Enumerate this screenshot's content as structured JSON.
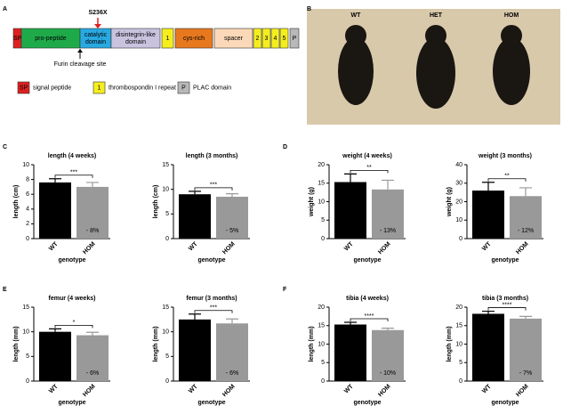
{
  "panel_labels": [
    "A",
    "B",
    "C",
    "D",
    "E",
    "F"
  ],
  "diagram": {
    "mutation": "S236X",
    "cleavage": "Furin cleavage site",
    "domains": [
      {
        "label": [
          "SP"
        ],
        "color": "#e02020"
      },
      {
        "label": [
          "pro-peptide"
        ],
        "color": "#1faa4a"
      },
      {
        "label": [
          "catalytic",
          "domain"
        ],
        "color": "#29a9e1"
      },
      {
        "label": [
          "disintegrin-like",
          "domain"
        ],
        "color": "#c9c3e0"
      },
      {
        "label": [
          "1"
        ],
        "color": "#f5ee1e"
      },
      {
        "label": [
          "cys-rich"
        ],
        "color": "#e8781e"
      },
      {
        "label": [
          "spacer"
        ],
        "color": "#fbd9b8"
      },
      {
        "label": [
          "2"
        ],
        "color": "#f5ee1e"
      },
      {
        "label": [
          "3"
        ],
        "color": "#f5ee1e"
      },
      {
        "label": [
          "4"
        ],
        "color": "#f5ee1e"
      },
      {
        "label": [
          "5"
        ],
        "color": "#f5ee1e"
      },
      {
        "label": [
          "P"
        ],
        "color": "#b8b8b8"
      }
    ],
    "legend": [
      {
        "key": "SP",
        "text": "signal peptide",
        "color": "#e02020"
      },
      {
        "key": "1",
        "text": "thrombospondin I repeat",
        "color": "#f5ee1e"
      },
      {
        "key": "P",
        "text": "PLAC domain",
        "color": "#b8b8b8"
      }
    ]
  },
  "photo": {
    "labels": [
      "WT",
      "HET",
      "HOM"
    ]
  },
  "chart_data": [
    {
      "type": "bar",
      "title": "length (4 weeks)",
      "categories": [
        "WT",
        "HOM"
      ],
      "values": [
        7.6,
        7.0
      ],
      "errors": [
        0.5,
        0.6
      ],
      "colors": [
        "#000000",
        "#999999"
      ],
      "ylim": [
        0,
        10
      ],
      "yticks": [
        0,
        2,
        4,
        6,
        8,
        10
      ],
      "ylabel": "length (cm)",
      "xlabel": "genotype",
      "significance": "***",
      "annotation": "- 8%"
    },
    {
      "type": "bar",
      "title": "length (3 months)",
      "categories": [
        "WT",
        "HOM"
      ],
      "values": [
        9.0,
        8.5
      ],
      "errors": [
        0.6,
        0.6
      ],
      "colors": [
        "#000000",
        "#999999"
      ],
      "ylim": [
        0,
        15
      ],
      "yticks": [
        0,
        5,
        10,
        15
      ],
      "ylabel": "length (cm)",
      "xlabel": "genotype",
      "significance": "***",
      "annotation": "- 5%"
    },
    {
      "type": "bar",
      "title": "weight (4 weeks)",
      "categories": [
        "WT",
        "HOM"
      ],
      "values": [
        15.3,
        13.3
      ],
      "errors": [
        2.2,
        2.5
      ],
      "colors": [
        "#000000",
        "#999999"
      ],
      "ylim": [
        0,
        20
      ],
      "yticks": [
        0,
        5,
        10,
        15,
        20
      ],
      "ylabel": "weight (g)",
      "xlabel": "genotype",
      "significance": "**",
      "annotation": "- 13%"
    },
    {
      "type": "bar",
      "title": "weight (3 months)",
      "categories": [
        "WT",
        "HOM"
      ],
      "values": [
        26,
        23
      ],
      "errors": [
        4.5,
        4.5
      ],
      "colors": [
        "#000000",
        "#999999"
      ],
      "ylim": [
        0,
        40
      ],
      "yticks": [
        0,
        10,
        20,
        30,
        40
      ],
      "ylabel": "weight (g)",
      "xlabel": "genotype",
      "significance": "**",
      "annotation": "- 12%"
    },
    {
      "type": "bar",
      "title": "femur (4 weeks)",
      "categories": [
        "WT",
        "HOM"
      ],
      "values": [
        10.0,
        9.3
      ],
      "errors": [
        0.6,
        0.6
      ],
      "colors": [
        "#000000",
        "#999999"
      ],
      "ylim": [
        0,
        15
      ],
      "yticks": [
        0,
        5,
        10,
        15
      ],
      "ylabel": "length (mm)",
      "xlabel": "genotype",
      "significance": "*",
      "annotation": "- 6%"
    },
    {
      "type": "bar",
      "title": "femur (3 months)",
      "categories": [
        "WT",
        "HOM"
      ],
      "values": [
        12.5,
        11.7
      ],
      "errors": [
        1.1,
        0.9
      ],
      "colors": [
        "#000000",
        "#999999"
      ],
      "ylim": [
        0,
        15
      ],
      "yticks": [
        0,
        5,
        10,
        15
      ],
      "ylabel": "length (mm)",
      "xlabel": "genotype",
      "significance": "***",
      "annotation": "- 6%"
    },
    {
      "type": "bar",
      "title": "tibia (4 weeks)",
      "categories": [
        "WT",
        "HOM"
      ],
      "values": [
        15.3,
        13.8
      ],
      "errors": [
        0.6,
        0.5
      ],
      "colors": [
        "#000000",
        "#999999"
      ],
      "ylim": [
        0,
        20
      ],
      "yticks": [
        0,
        5,
        10,
        15,
        20
      ],
      "ylabel": "length (mm)",
      "xlabel": "genotype",
      "significance": "****",
      "annotation": "- 10%"
    },
    {
      "type": "bar",
      "title": "tibia (3 months)",
      "categories": [
        "WT",
        "HOM"
      ],
      "values": [
        18.2,
        16.9
      ],
      "errors": [
        0.7,
        0.6
      ],
      "colors": [
        "#000000",
        "#999999"
      ],
      "ylim": [
        0,
        20
      ],
      "yticks": [
        0,
        5,
        10,
        15,
        20
      ],
      "ylabel": "length (mm)",
      "xlabel": "genotype",
      "significance": "****",
      "annotation": "- 7%"
    }
  ]
}
